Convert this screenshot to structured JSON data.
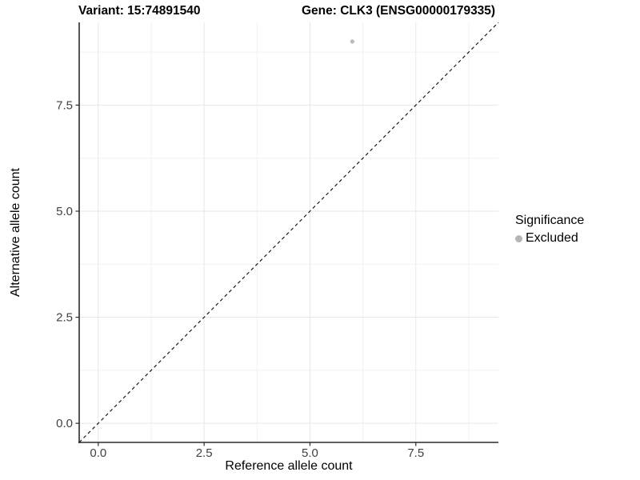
{
  "chart_data": {
    "type": "scatter",
    "title_left": "Variant: 15:74891540",
    "title_right": "Gene: CLK3 (ENSG00000179335)",
    "xlabel": "Reference allele count",
    "ylabel": "Alternative allele count",
    "xlim": [
      -0.45,
      9.45
    ],
    "ylim": [
      -0.45,
      9.45
    ],
    "major_ticks": [
      0,
      2.5,
      5,
      7.5
    ],
    "minor_ticks": [
      1.25,
      3.75,
      6.25,
      8.75
    ],
    "x_tick_labels": [
      "0.0",
      "2.5",
      "5.0",
      "7.5"
    ],
    "y_tick_labels": [
      "0.0",
      "2.5",
      "5.0",
      "7.5"
    ],
    "grid": true,
    "points": [
      {
        "x": 6,
        "y": 9,
        "series": "Excluded"
      }
    ],
    "reference_line": {
      "type": "abline",
      "slope": 1,
      "intercept": 0,
      "style": "dashed"
    },
    "legend": {
      "title": "Significance",
      "position": "right",
      "items": [
        {
          "label": "Excluded",
          "color": "#b5b5b5"
        }
      ]
    },
    "colors": {
      "excluded_point": "#bdbdbd",
      "grid_major": "#e7e7e7",
      "grid_minor": "#f1f1f1",
      "axis_line": "#2b2b2b",
      "tick_text": "#404040",
      "reference_line": "#1a1a1a",
      "background": "#ffffff"
    }
  }
}
